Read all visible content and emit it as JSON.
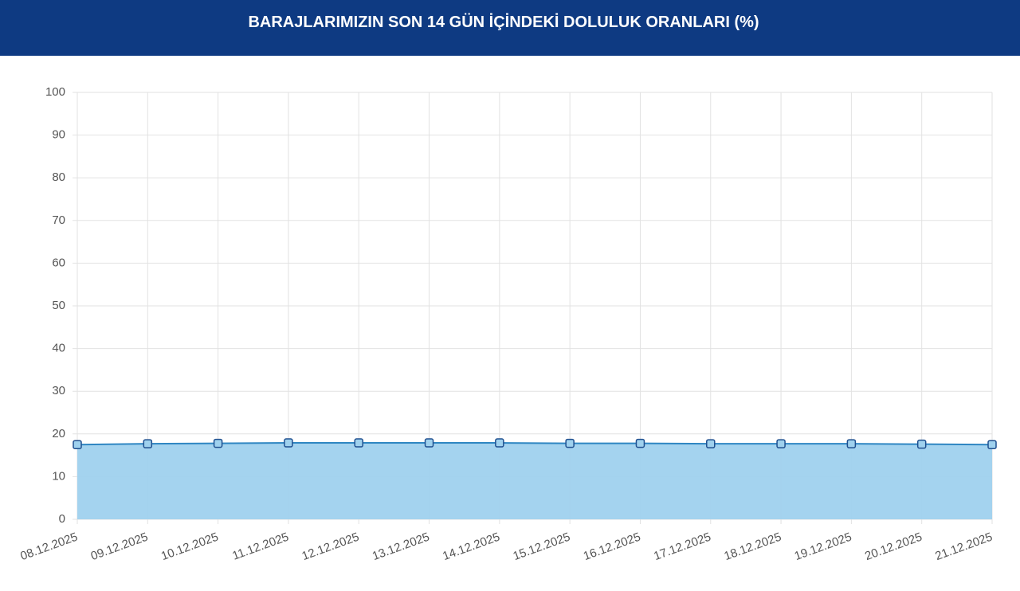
{
  "chart_data": {
    "type": "area",
    "title": "BARAJLARIMIZIN SON 14 GÜN İÇİNDEKİ DOLULUK ORANLARI (%)",
    "categories": [
      "08.12.2025",
      "09.12.2025",
      "10.12.2025",
      "11.12.2025",
      "12.12.2025",
      "13.12.2025",
      "14.12.2025",
      "15.12.2025",
      "16.12.2025",
      "17.12.2025",
      "18.12.2025",
      "19.12.2025",
      "20.12.2025",
      "21.12.2025"
    ],
    "values": [
      17.5,
      17.7,
      17.8,
      17.9,
      17.9,
      17.9,
      17.9,
      17.8,
      17.8,
      17.7,
      17.7,
      17.7,
      17.6,
      17.5
    ],
    "color": "#2f86c2",
    "fill_color": "#9fd1ee",
    "ylim": [
      0,
      100
    ],
    "yticks": [
      0,
      10,
      20,
      30,
      40,
      50,
      60,
      70,
      80,
      90,
      100
    ],
    "grid": true
  }
}
